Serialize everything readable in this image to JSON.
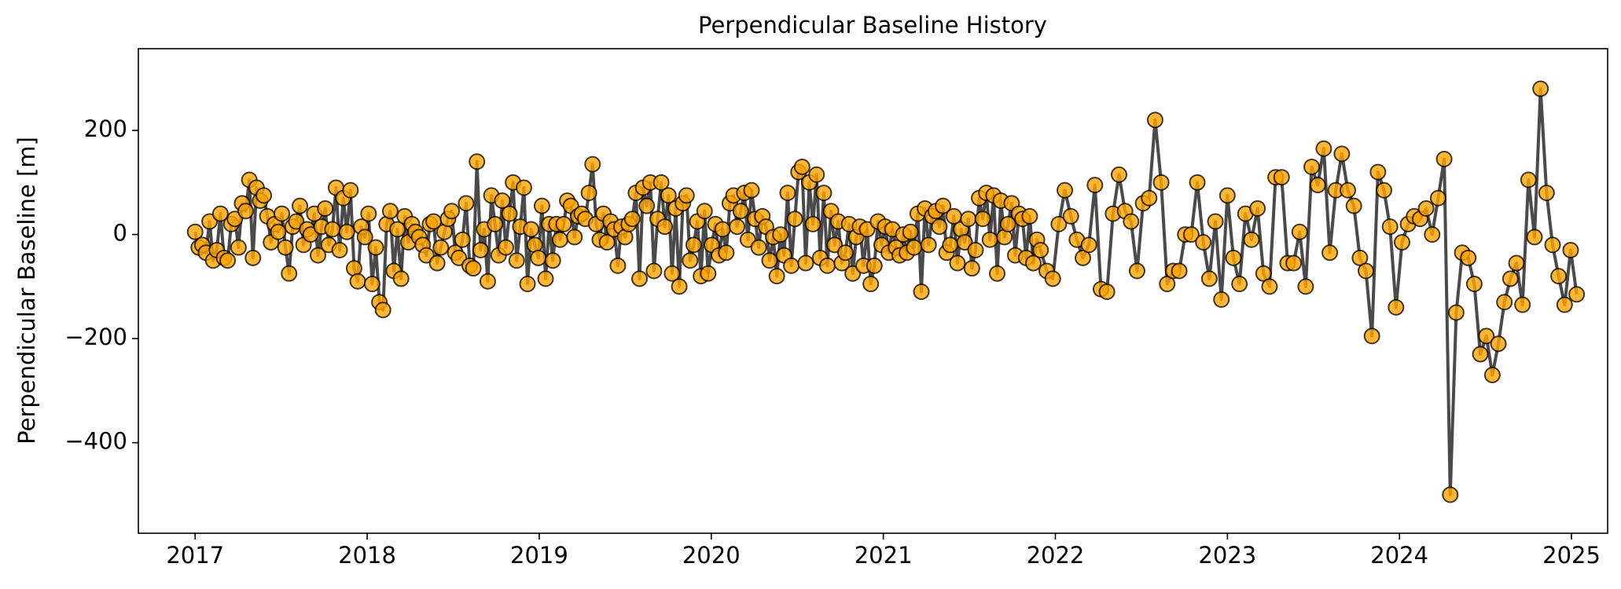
{
  "chart_data": {
    "type": "line",
    "title": "Perpendicular Baseline History",
    "ylabel": "Perpendicular Baseline [m]",
    "x": [
      2017,
      2017.021,
      2017.042,
      2017.063,
      2017.084,
      2017.105,
      2017.126,
      2017.147,
      2017.168,
      2017.189,
      2017.21,
      2017.231,
      2017.252,
      2017.273,
      2017.294,
      2017.315,
      2017.336,
      2017.357,
      2017.378,
      2017.399,
      2017.42,
      2017.441,
      2017.462,
      2017.483,
      2017.504,
      2017.525,
      2017.546,
      2017.567,
      2017.588,
      2017.609,
      2017.63,
      2017.651,
      2017.672,
      2017.693,
      2017.714,
      2017.735,
      2017.756,
      2017.777,
      2017.798,
      2017.819,
      2017.84,
      2017.861,
      2017.882,
      2017.903,
      2017.924,
      2017.945,
      2017.966,
      2017.987,
      2018.008,
      2018.029,
      2018.05,
      2018.071,
      2018.092,
      2018.113,
      2018.134,
      2018.155,
      2018.176,
      2018.197,
      2018.218,
      2018.239,
      2018.26,
      2018.281,
      2018.302,
      2018.323,
      2018.344,
      2018.365,
      2018.386,
      2018.407,
      2018.428,
      2018.449,
      2018.47,
      2018.491,
      2018.512,
      2018.533,
      2018.554,
      2018.575,
      2018.596,
      2018.617,
      2018.638,
      2018.659,
      2018.68,
      2018.701,
      2018.722,
      2018.743,
      2018.764,
      2018.785,
      2018.806,
      2018.827,
      2018.848,
      2018.869,
      2018.89,
      2018.911,
      2018.932,
      2018.953,
      2018.974,
      2018.995,
      2019.016,
      2019.037,
      2019.058,
      2019.079,
      2019.1,
      2019.121,
      2019.142,
      2019.163,
      2019.184,
      2019.205,
      2019.226,
      2019.247,
      2019.268,
      2019.289,
      2019.31,
      2019.331,
      2019.352,
      2019.373,
      2019.394,
      2019.415,
      2019.436,
      2019.457,
      2019.478,
      2019.499,
      2019.52,
      2019.541,
      2019.562,
      2019.583,
      2019.604,
      2019.625,
      2019.646,
      2019.667,
      2019.688,
      2019.709,
      2019.73,
      2019.751,
      2019.772,
      2019.793,
      2019.814,
      2019.835,
      2019.856,
      2019.877,
      2019.898,
      2019.919,
      2019.94,
      2019.961,
      2019.982,
      2020.003,
      2020.024,
      2020.045,
      2020.066,
      2020.087,
      2020.108,
      2020.129,
      2020.15,
      2020.171,
      2020.192,
      2020.213,
      2020.234,
      2020.255,
      2020.276,
      2020.297,
      2020.318,
      2020.339,
      2020.36,
      2020.381,
      2020.402,
      2020.423,
      2020.444,
      2020.465,
      2020.486,
      2020.507,
      2020.528,
      2020.549,
      2020.57,
      2020.591,
      2020.612,
      2020.633,
      2020.654,
      2020.675,
      2020.696,
      2020.717,
      2020.738,
      2020.759,
      2020.78,
      2020.801,
      2020.822,
      2020.843,
      2020.864,
      2020.885,
      2020.906,
      2020.927,
      2020.948,
      2020.969,
      2020.99,
      2021.011,
      2021.032,
      2021.053,
      2021.074,
      2021.095,
      2021.116,
      2021.137,
      2021.158,
      2021.179,
      2021.2,
      2021.221,
      2021.242,
      2021.263,
      2021.284,
      2021.305,
      2021.326,
      2021.347,
      2021.368,
      2021.389,
      2021.41,
      2021.431,
      2021.452,
      2021.473,
      2021.494,
      2021.515,
      2021.536,
      2021.557,
      2021.578,
      2021.599,
      2021.62,
      2021.641,
      2021.662,
      2021.683,
      2021.704,
      2021.725,
      2021.746,
      2021.767,
      2021.788,
      2021.809,
      2021.83,
      2021.851,
      2021.872,
      2021.893,
      2021.914,
      2021.95,
      2021.985,
      2022.02,
      2022.055,
      2022.09,
      2022.125,
      2022.16,
      2022.195,
      2022.23,
      2022.265,
      2022.3,
      2022.335,
      2022.37,
      2022.405,
      2022.44,
      2022.475,
      2022.51,
      2022.545,
      2022.58,
      2022.615,
      2022.65,
      2022.685,
      2022.72,
      2022.755,
      2022.79,
      2022.825,
      2022.86,
      2022.895,
      2022.93,
      2022.965,
      2023.0,
      2023.035,
      2023.07,
      2023.105,
      2023.14,
      2023.175,
      2023.21,
      2023.245,
      2023.28,
      2023.315,
      2023.35,
      2023.385,
      2023.42,
      2023.455,
      2023.49,
      2023.525,
      2023.56,
      2023.595,
      2023.63,
      2023.665,
      2023.7,
      2023.735,
      2023.77,
      2023.805,
      2023.84,
      2023.875,
      2023.91,
      2023.945,
      2023.98,
      2024.015,
      2024.05,
      2024.085,
      2024.12,
      2024.155,
      2024.19,
      2024.225,
      2024.26,
      2024.295,
      2024.33,
      2024.365,
      2024.4,
      2024.435,
      2024.47,
      2024.505,
      2024.54,
      2024.575,
      2024.61,
      2024.645,
      2024.68,
      2024.715,
      2024.75,
      2024.785,
      2024.82,
      2024.855,
      2024.89,
      2024.925,
      2024.96,
      2024.995,
      2025.03
    ],
    "values": [
      5,
      -25,
      -20,
      -35,
      25,
      -50,
      -30,
      40,
      -45,
      -50,
      20,
      30,
      -25,
      60,
      45,
      105,
      -45,
      90,
      65,
      75,
      35,
      -15,
      20,
      5,
      40,
      -25,
      -75,
      15,
      25,
      55,
      -20,
      10,
      0,
      40,
      -40,
      15,
      50,
      -20,
      10,
      90,
      -30,
      70,
      5,
      85,
      -65,
      -90,
      15,
      -5,
      40,
      -95,
      -25,
      -130,
      -145,
      20,
      45,
      -70,
      10,
      -85,
      35,
      -15,
      20,
      5,
      -5,
      -20,
      -40,
      20,
      25,
      -55,
      -25,
      5,
      30,
      45,
      -35,
      -45,
      -10,
      60,
      -60,
      -65,
      140,
      -30,
      10,
      -90,
      75,
      20,
      -40,
      65,
      -25,
      40,
      100,
      -50,
      15,
      90,
      -95,
      10,
      -20,
      -45,
      55,
      -85,
      20,
      -50,
      20,
      -10,
      20,
      65,
      55,
      -5,
      35,
      40,
      30,
      80,
      135,
      20,
      -10,
      40,
      -15,
      25,
      10,
      -60,
      15,
      -5,
      20,
      30,
      80,
      -85,
      90,
      55,
      100,
      -70,
      30,
      100,
      15,
      75,
      -75,
      50,
      -100,
      60,
      75,
      -50,
      -20,
      25,
      -80,
      45,
      -75,
      -20,
      20,
      -40,
      10,
      -35,
      60,
      75,
      15,
      45,
      80,
      -10,
      85,
      30,
      -25,
      35,
      15,
      -50,
      -5,
      -80,
      0,
      -40,
      80,
      -60,
      30,
      120,
      130,
      -55,
      100,
      20,
      115,
      -45,
      80,
      -60,
      45,
      -20,
      25,
      -55,
      -35,
      20,
      -75,
      -5,
      15,
      -60,
      10,
      -95,
      -60,
      25,
      -20,
      15,
      -35,
      10,
      -25,
      -40,
      0,
      -35,
      5,
      -25,
      40,
      -110,
      50,
      -20,
      35,
      45,
      15,
      55,
      -35,
      -20,
      35,
      -55,
      10,
      -15,
      30,
      -65,
      -30,
      70,
      30,
      80,
      -10,
      75,
      -75,
      65,
      -5,
      20,
      60,
      -40,
      40,
      30,
      -45,
      35,
      -55,
      -10,
      -30,
      -70,
      -85,
      20,
      85,
      35,
      -10,
      -45,
      -20,
      95,
      -105,
      -110,
      40,
      115,
      45,
      25,
      -70,
      60,
      70,
      220,
      100,
      -95,
      -70,
      -70,
      0,
      0,
      100,
      -15,
      -85,
      25,
      -125,
      75,
      -45,
      -95,
      40,
      -10,
      50,
      -75,
      -100,
      110,
      110,
      -55,
      -55,
      5,
      -100,
      130,
      95,
      165,
      -35,
      85,
      155,
      85,
      55,
      -45,
      -70,
      -195,
      120,
      85,
      15,
      -140,
      -15,
      20,
      35,
      30,
      50,
      0,
      70,
      145,
      -500,
      -150,
      -35,
      -45,
      -95,
      -230,
      -195,
      -270,
      -210,
      -130,
      -85,
      -55,
      -135,
      105,
      -5,
      280,
      80,
      -20,
      -80,
      -135,
      -30,
      -115
    ],
    "line_color": "#404040",
    "marker_color": "#ffa500",
    "marker_edge_color": "#000000",
    "xlim": [
      2016.67,
      2025.21
    ],
    "xticks": [
      2017,
      2018,
      2019,
      2020,
      2021,
      2022,
      2023,
      2024,
      2025
    ],
    "ylim": [
      -574,
      357
    ],
    "yticks": [
      {
        "value": -400,
        "label": "−400"
      },
      {
        "value": -200,
        "label": "−200"
      },
      0,
      200
    ]
  }
}
